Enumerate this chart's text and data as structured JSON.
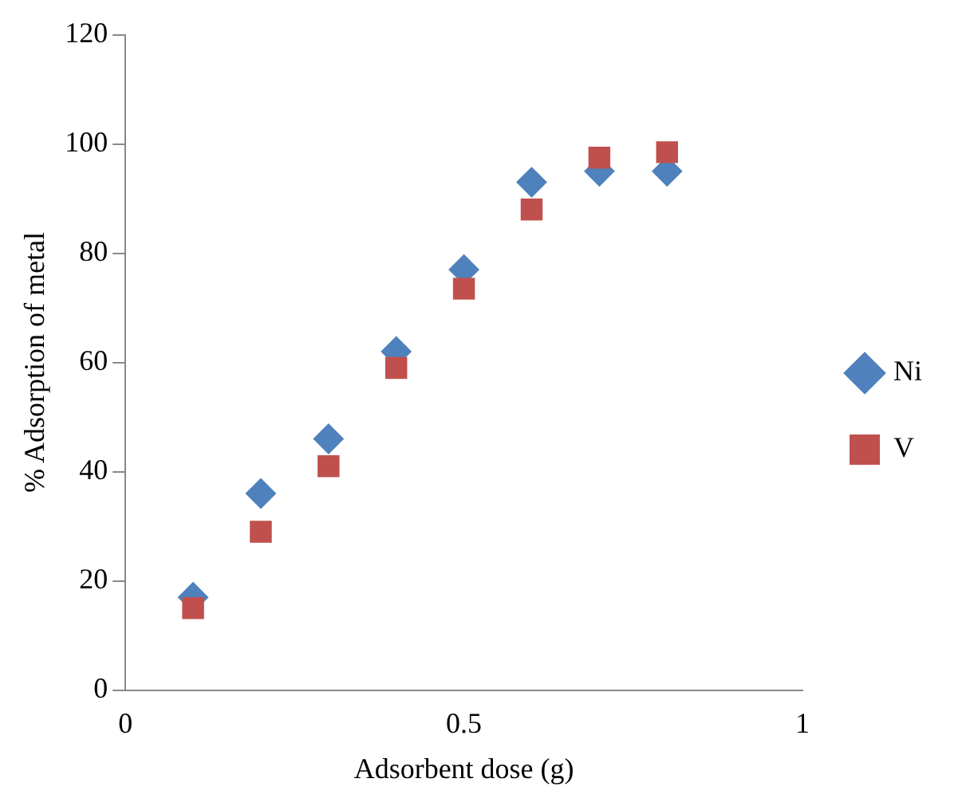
{
  "chart_data": {
    "type": "scatter",
    "xlabel": "Adsorbent dose (g)",
    "ylabel": "% Adsorption of metal",
    "x": [
      0.1,
      0.2,
      0.3,
      0.4,
      0.5,
      0.6,
      0.7,
      0.8
    ],
    "series": [
      {
        "name": "Ni",
        "color": "#4f81bd",
        "marker": "diamond",
        "values": [
          17,
          36,
          46,
          62,
          77,
          93,
          95,
          95
        ]
      },
      {
        "name": "V",
        "color": "#c0504d",
        "marker": "square",
        "values": [
          15,
          29,
          41,
          59,
          73.5,
          88,
          97.5,
          98.5
        ]
      }
    ],
    "xlim": [
      0,
      1
    ],
    "xticks": [
      0,
      0.5,
      1
    ],
    "ylim": [
      0,
      120
    ],
    "yticks": [
      0,
      20,
      40,
      60,
      80,
      100,
      120
    ],
    "grid": false,
    "legend": "right"
  }
}
